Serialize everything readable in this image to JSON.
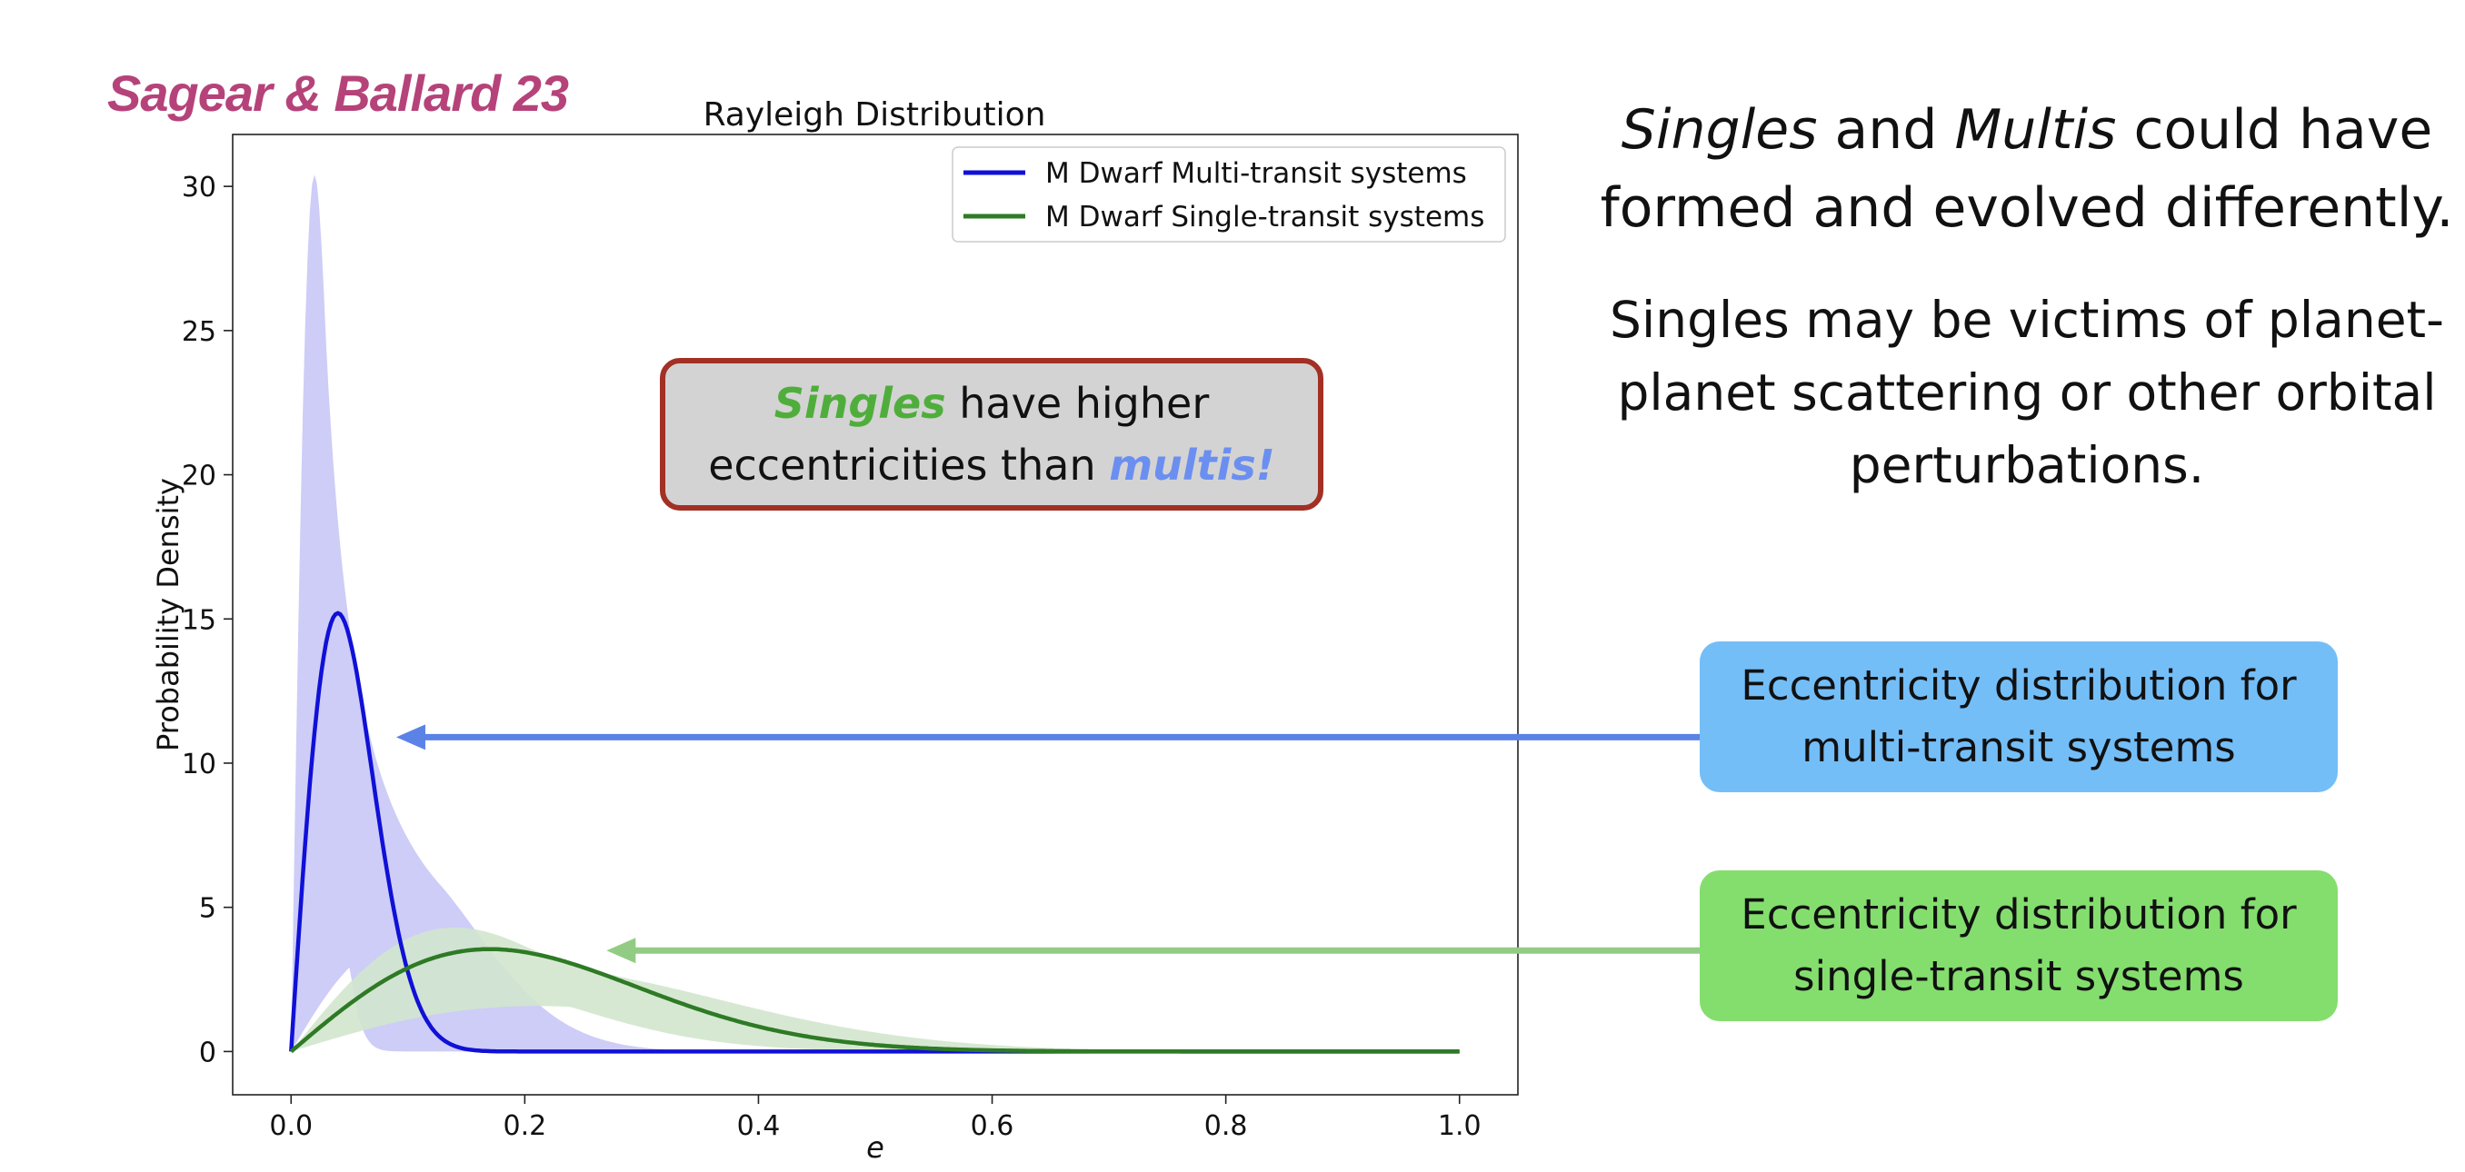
{
  "citation": "Sagear & Ballard 23",
  "chart_data": {
    "type": "line",
    "title": "Rayleigh Distribution",
    "xlabel": "e",
    "ylabel": "Probability Density",
    "xlim": [
      -0.05,
      1.05
    ],
    "ylim": [
      -1.5,
      31.8
    ],
    "xticks": [
      0.0,
      0.2,
      0.4,
      0.6,
      0.8,
      1.0
    ],
    "xtick_labels": [
      "0.0",
      "0.2",
      "0.4",
      "0.6",
      "0.8",
      "1.0"
    ],
    "yticks": [
      0,
      5,
      10,
      15,
      20,
      25,
      30
    ],
    "ytick_labels": [
      "0",
      "5",
      "10",
      "15",
      "20",
      "25",
      "30"
    ],
    "grid": false,
    "legend_position": "top-right",
    "series": [
      {
        "name": "M Dwarf Multi-transit systems",
        "color": "#1010d8",
        "band_color": "#c8c8f6",
        "sigma": 0.04,
        "sigma_band": [
          0.02,
          0.09
        ],
        "peak_value": 15.2,
        "band_peak_value": 30.4
      },
      {
        "name": "M Dwarf Single-transit systems",
        "color": "#2e7a25",
        "band_color": "#d2e6cd",
        "sigma": 0.17,
        "sigma_band": [
          0.14,
          0.21
        ],
        "peak_value": 3.55,
        "band_peak_value": 4.3
      }
    ]
  },
  "highlight": {
    "line1_word": "Singles",
    "line1_rest": " have higher",
    "line2_start": "eccentricities than ",
    "line2_word": "multis!"
  },
  "headline": {
    "word1": "Singles",
    "mid": " and ",
    "word2": "Multis",
    "rest": " could have formed and evolved differently."
  },
  "subtext": "Singles may be victims of planet-planet scattering or other orbital perturbations.",
  "annotations": {
    "multi": {
      "line1": "Eccentricity distribution for",
      "line2": "multi-transit systems",
      "color": "#74bef8",
      "arrow_color": "#5b82e6",
      "arrow_target": [
        0.09,
        10.9
      ]
    },
    "single": {
      "line1": "Eccentricity distribution for",
      "line2": "single-transit systems",
      "color": "#84de6e",
      "arrow_color": "#92cc84",
      "arrow_target": [
        0.27,
        3.5
      ]
    }
  }
}
